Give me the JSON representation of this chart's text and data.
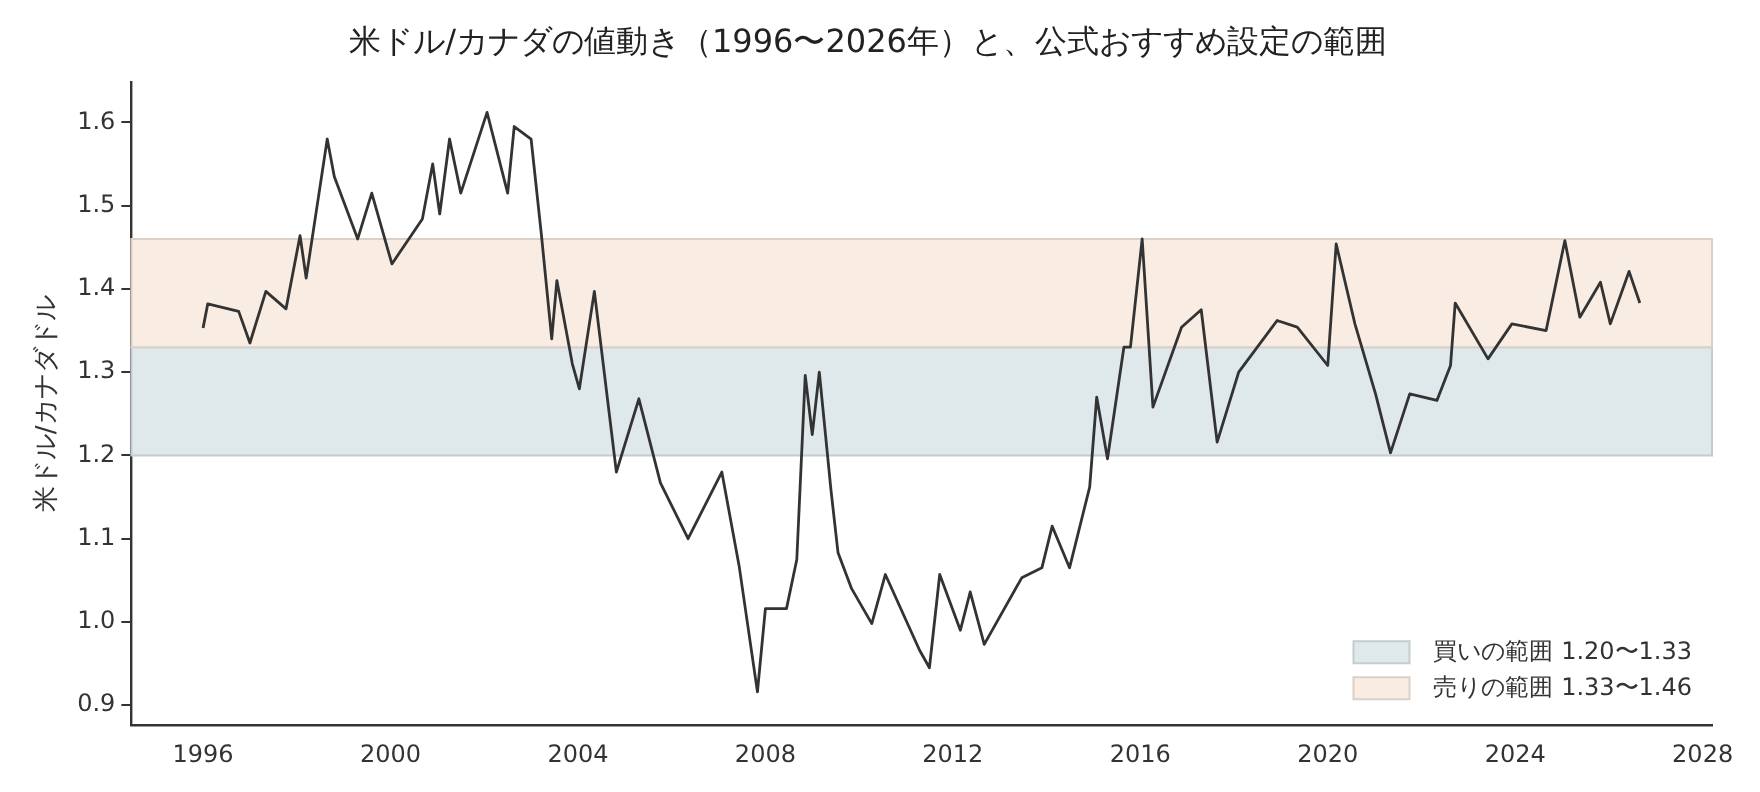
{
  "chart_data": {
    "type": "line",
    "title": "米ドル/カナダの値動き（1996〜2026年）と、公式おすすめ設定の範囲",
    "ylabel": "米ドル/カナダドル",
    "series": [
      {
        "color": "#333333",
        "x": [
          1996.0,
          1996.1,
          1996.76,
          1997.0,
          1997.34,
          1997.77,
          1998.07,
          1998.2,
          1998.65,
          1998.8,
          1999.3,
          1999.6,
          2000.03,
          2000.68,
          2000.9,
          2001.05,
          2001.26,
          2001.5,
          2002.06,
          2002.5,
          2002.64,
          2003.0,
          2003.22,
          2003.44,
          2003.55,
          2003.88,
          2004.03,
          2004.35,
          2004.82,
          2005.3,
          2005.76,
          2006.35,
          2007.07,
          2007.44,
          2007.83,
          2008.0,
          2008.45,
          2008.67,
          2008.85,
          2009.0,
          2009.15,
          2009.4,
          2009.55,
          2009.84,
          2010.27,
          2010.56,
          2011.29,
          2011.5,
          2011.72,
          2012.16,
          2012.37,
          2012.67,
          2013.47,
          2013.9,
          2014.12,
          2014.49,
          2014.92,
          2015.07,
          2015.3,
          2015.65,
          2015.79,
          2016.04,
          2016.27,
          2016.88,
          2017.3,
          2017.64,
          2018.1,
          2018.92,
          2019.35,
          2020.0,
          2020.18,
          2020.58,
          2021.02,
          2021.34,
          2021.75,
          2022.33,
          2022.62,
          2022.72,
          2023.42,
          2023.93,
          2024.66,
          2025.06,
          2025.38,
          2025.82,
          2026.03,
          2026.43,
          2026.66
        ],
        "values": [
          1.353,
          1.382,
          1.373,
          1.335,
          1.397,
          1.376,
          1.464,
          1.413,
          1.58,
          1.535,
          1.46,
          1.515,
          1.43,
          1.484,
          1.55,
          1.49,
          1.58,
          1.515,
          1.612,
          1.515,
          1.595,
          1.58,
          1.465,
          1.34,
          1.41,
          1.31,
          1.28,
          1.397,
          1.18,
          1.268,
          1.167,
          1.1,
          1.18,
          1.067,
          0.916,
          1.016,
          1.016,
          1.075,
          1.296,
          1.225,
          1.3,
          1.158,
          1.083,
          1.04,
          0.998,
          1.057,
          0.966,
          0.945,
          1.057,
          0.99,
          1.036,
          0.973,
          1.053,
          1.065,
          1.115,
          1.065,
          1.162,
          1.27,
          1.196,
          1.33,
          1.33,
          1.46,
          1.258,
          1.354,
          1.375,
          1.216,
          1.3,
          1.362,
          1.354,
          1.308,
          1.454,
          1.358,
          1.274,
          1.203,
          1.274,
          1.266,
          1.308,
          1.383,
          1.316,
          1.358,
          1.35,
          1.458,
          1.366,
          1.408,
          1.358,
          1.421,
          1.383
        ]
      }
    ],
    "bands": [
      {
        "axis": "y",
        "from": 1.2,
        "to": 1.33,
        "label": "買いの範囲 1.20〜1.33",
        "color": "#dfe8ea"
      },
      {
        "axis": "y",
        "from": 1.33,
        "to": 1.46,
        "label": "売りの範囲 1.33〜1.46",
        "color": "#f8ece3"
      }
    ],
    "xlim": [
      1994.47,
      2028.2
    ],
    "xticks": [
      1996,
      2000,
      2004,
      2008,
      2012,
      2016,
      2020,
      2024,
      2028
    ],
    "ylim": [
      0.876,
      1.648
    ],
    "yticks": [
      0.9,
      {
        "value": 1,
        "label": "1.0"
      },
      1.1,
      1.2,
      1.3,
      1.4,
      1.5,
      1.6
    ],
    "grid": false,
    "legend": "bottom right",
    "marker": "none",
    "line_style": "solid"
  }
}
